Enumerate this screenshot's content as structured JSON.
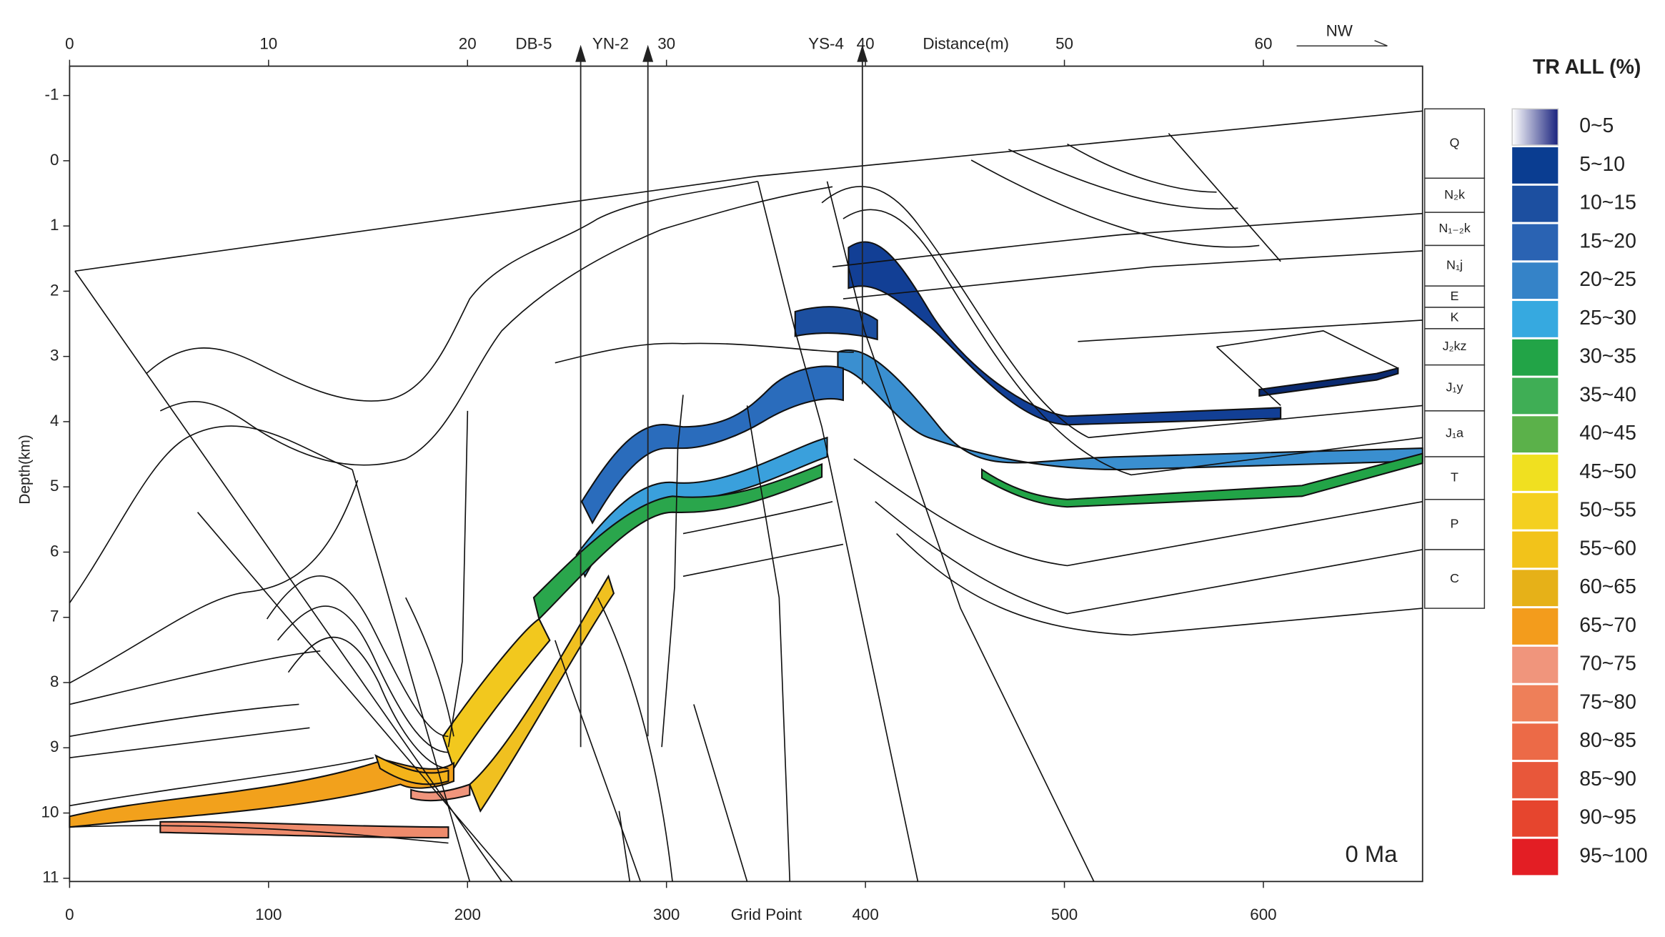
{
  "figure": {
    "top_axis": {
      "label": "Distance(m)",
      "lim": [
        0,
        68
      ],
      "ticks": [
        0,
        10,
        20,
        30,
        40,
        50,
        60
      ]
    },
    "bottom_axis": {
      "label": "Grid Point",
      "lim": [
        0,
        680
      ],
      "ticks": [
        0,
        100,
        200,
        300,
        400,
        500,
        600
      ]
    },
    "left_axis": {
      "label": "Depth(km)",
      "lim": [
        -1.45,
        11.05
      ],
      "ticks": [
        -1,
        0,
        1,
        2,
        3,
        4,
        5,
        6,
        7,
        8,
        9,
        10,
        11
      ]
    },
    "wells": [
      "DB-5",
      "YN-2",
      "YS-4"
    ],
    "direction": "NW",
    "time": "0 Ma",
    "strata": [
      "Q",
      "N₂k",
      "N₁₋₂k",
      "N₁j",
      "E",
      "K",
      "J₂kz",
      "J₁y",
      "J₁a",
      "T",
      "P",
      "C"
    ],
    "legend": {
      "title": "TR ALL (%)",
      "items": [
        {
          "label": "0~5",
          "color": "#1a237e"
        },
        {
          "label": "5~10",
          "color": "#0a3d91"
        },
        {
          "label": "10~15",
          "color": "#1c4fa0"
        },
        {
          "label": "15~20",
          "color": "#2a63b3"
        },
        {
          "label": "20~25",
          "color": "#3583c8"
        },
        {
          "label": "25~30",
          "color": "#36a9e0"
        },
        {
          "label": "30~35",
          "color": "#22a447"
        },
        {
          "label": "35~40",
          "color": "#3fae55"
        },
        {
          "label": "40~45",
          "color": "#5bb14a"
        },
        {
          "label": "45~50",
          "color": "#f0e020"
        },
        {
          "label": "50~55",
          "color": "#f4d020"
        },
        {
          "label": "55~60",
          "color": "#f2c31a"
        },
        {
          "label": "60~65",
          "color": "#e6b118"
        },
        {
          "label": "65~70",
          "color": "#f39c1c"
        },
        {
          "label": "70~75",
          "color": "#f0957c"
        },
        {
          "label": "75~80",
          "color": "#ee7f59"
        },
        {
          "label": "80~85",
          "color": "#ec6a47"
        },
        {
          "label": "85~90",
          "color": "#e8573a"
        },
        {
          "label": "90~95",
          "color": "#e6452e"
        },
        {
          "label": "95~100",
          "color": "#e31e24"
        }
      ]
    }
  }
}
